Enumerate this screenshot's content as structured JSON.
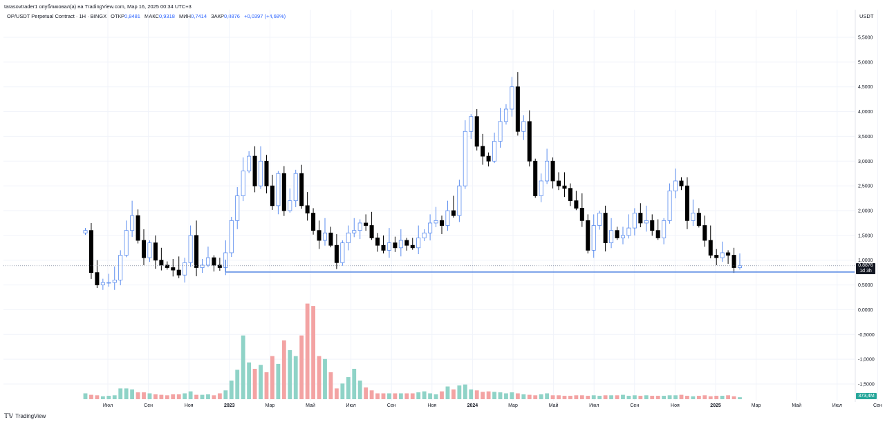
{
  "publisher": "tarasovtrader1 опубликовал(а) на TradingView.com, Мар 16, 2025 00:34 UTC+3",
  "legend": {
    "symbol": "OP/USDT Perpetual Contract · 1Н · BINGX",
    "open_label": "ОТКР",
    "open": "0,8481",
    "high_label": "МАКС",
    "high": "0,9318",
    "low_label": "МИН",
    "low": "0,7414",
    "close_label": "ЗАКР",
    "close": "0,8876",
    "change": "+0,0397 (+4,68%)"
  },
  "currency": "USDT",
  "price_label": {
    "price": "0,8876",
    "countdown": "1d 3h"
  },
  "volume_label": "373,4M",
  "brand": {
    "icon": "tv-logo-icon",
    "name": "TradingView"
  },
  "colors": {
    "up": "#5b8def",
    "down": "#000000",
    "vol_up": "#8fd3c7",
    "vol_down": "#f3a3a3",
    "support": "#4a7fe0"
  },
  "chart_data": {
    "type": "candlestick",
    "title": "OP/USDT Perpetual Contract",
    "ylabel": "USDT",
    "ylim": [
      -1.9,
      5.9
    ],
    "yticks": [
      "5,5000",
      "5,0000",
      "4,5000",
      "4,0000",
      "3,5000",
      "3,0000",
      "2,5000",
      "2,0000",
      "1,5000",
      "1,0000",
      "0,5000",
      "0,0000",
      "-0,5000",
      "-1,0000",
      "-1,5000"
    ],
    "xticks": [
      {
        "label": "Июл",
        "bold": false
      },
      {
        "label": "Сен",
        "bold": false
      },
      {
        "label": "Ноя",
        "bold": false
      },
      {
        "label": "2023",
        "bold": true
      },
      {
        "label": "Мар",
        "bold": false
      },
      {
        "label": "Май",
        "bold": false
      },
      {
        "label": "Июл",
        "bold": false
      },
      {
        "label": "Сен",
        "bold": false
      },
      {
        "label": "Ноя",
        "bold": false
      },
      {
        "label": "2024",
        "bold": true
      },
      {
        "label": "Мар",
        "bold": false
      },
      {
        "label": "Май",
        "bold": false
      },
      {
        "label": "Июл",
        "bold": false
      },
      {
        "label": "Сен",
        "bold": false
      },
      {
        "label": "Ноя",
        "bold": false
      },
      {
        "label": "2025",
        "bold": true
      },
      {
        "label": "Мар",
        "bold": false
      },
      {
        "label": "Май",
        "bold": false
      },
      {
        "label": "Июл",
        "bold": false
      },
      {
        "label": "Сен",
        "bold": false
      }
    ],
    "current_price": 0.8876,
    "support_level": 0.76,
    "closes": [
      1.6,
      0.75,
      0.5,
      0.55,
      0.55,
      0.6,
      1.1,
      1.6,
      1.9,
      1.4,
      1.05,
      1.35,
      1.0,
      0.9,
      0.85,
      0.8,
      0.7,
      0.95,
      1.5,
      0.85,
      0.9,
      1.05,
      0.9,
      0.85,
      1.15,
      1.8,
      2.3,
      2.8,
      3.1,
      2.5,
      3.0,
      2.5,
      2.1,
      2.75,
      2.0,
      2.2,
      2.75,
      2.1,
      1.95,
      1.6,
      1.4,
      1.55,
      1.3,
      0.95,
      1.35,
      1.55,
      1.6,
      1.75,
      1.7,
      1.45,
      1.3,
      1.2,
      1.35,
      1.25,
      1.4,
      1.3,
      1.25,
      1.45,
      1.55,
      1.75,
      1.8,
      1.7,
      2.0,
      1.9,
      2.5,
      3.6,
      3.9,
      3.3,
      3.1,
      3.0,
      3.4,
      3.8,
      4.05,
      4.5,
      3.6,
      3.8,
      3.0,
      2.3,
      2.6,
      3.0,
      2.6,
      2.5,
      2.45,
      2.2,
      2.05,
      1.8,
      1.2,
      1.7,
      1.95,
      1.35,
      1.6,
      1.45,
      1.5,
      1.65,
      1.95,
      1.75,
      1.8,
      1.6,
      1.45,
      1.8,
      2.4,
      2.6,
      2.5,
      1.8,
      1.95,
      1.7,
      1.4,
      1.1,
      1.05,
      1.15,
      1.1,
      0.85,
      0.8876
    ],
    "volumes": [
      0.12,
      0.09,
      0.08,
      0.06,
      0.07,
      0.08,
      0.22,
      0.22,
      0.2,
      0.14,
      0.14,
      0.12,
      0.1,
      0.09,
      0.08,
      0.1,
      0.1,
      0.12,
      0.16,
      0.09,
      0.09,
      0.1,
      0.08,
      0.12,
      0.18,
      0.38,
      0.6,
      1.3,
      0.75,
      0.62,
      0.7,
      0.55,
      0.88,
      0.72,
      1.2,
      1.0,
      0.88,
      1.3,
      1.95,
      1.9,
      0.88,
      0.82,
      0.55,
      0.22,
      0.32,
      0.45,
      0.62,
      0.38,
      0.24,
      0.18,
      0.12,
      0.12,
      0.12,
      0.12,
      0.12,
      0.12,
      0.12,
      0.14,
      0.16,
      0.12,
      0.1,
      0.16,
      0.26,
      0.2,
      0.28,
      0.3,
      0.2,
      0.18,
      0.15,
      0.16,
      0.15,
      0.14,
      0.12,
      0.14,
      0.12,
      0.1,
      0.09,
      0.08,
      0.1,
      0.12,
      0.08,
      0.08,
      0.07,
      0.07,
      0.08,
      0.08,
      0.07,
      0.08,
      0.07,
      0.08,
      0.08,
      0.08,
      0.09,
      0.07,
      0.08,
      0.07,
      0.08,
      0.07,
      0.07,
      0.07,
      0.08,
      0.08,
      0.09,
      0.07,
      0.06,
      0.07,
      0.08,
      0.06,
      0.07,
      0.07,
      0.08,
      0.06,
      0.04
    ]
  }
}
